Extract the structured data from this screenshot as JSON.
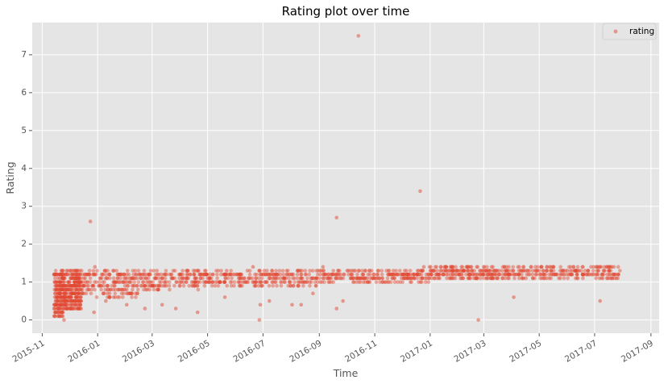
{
  "chart_data": {
    "type": "scatter",
    "title": "Rating plot over time",
    "xlabel": "Time",
    "ylabel": "Rating",
    "xlim": [
      "2015-10-21",
      "2017-09-10"
    ],
    "ylim": [
      -0.35,
      7.85
    ],
    "x_ticks": [
      "2015-11",
      "2016-01",
      "2016-03",
      "2016-05",
      "2016-07",
      "2016-09",
      "2016-11",
      "2017-01",
      "2017-03",
      "2017-05",
      "2017-07",
      "2017-09"
    ],
    "y_ticks": [
      0,
      1,
      2,
      3,
      4,
      5,
      6,
      7
    ],
    "grid": true,
    "legend_position": "top-right",
    "colors": {
      "series": "#E24A33",
      "plot_bg": "#E5E5E5",
      "grid": "#FFFFFF"
    },
    "series": [
      {
        "name": "rating",
        "points": [
          [
            "2015-12-24",
            2.6
          ],
          [
            "2016-06-27",
            0.0
          ],
          [
            "2016-09-20",
            2.7
          ],
          [
            "2016-09-20",
            0.3
          ],
          [
            "2016-09-27",
            0.5
          ],
          [
            "2016-10-14",
            7.5
          ],
          [
            "2016-12-21",
            3.4
          ],
          [
            "2017-02-23",
            0.0
          ],
          [
            "2017-04-03",
            0.6
          ],
          [
            "2017-07-07",
            0.5
          ],
          [
            "2015-11-20",
            0.1
          ],
          [
            "2015-11-25",
            0.0
          ],
          [
            "2015-12-05",
            0.3
          ],
          [
            "2015-12-28",
            0.2
          ],
          [
            "2016-01-10",
            0.5
          ],
          [
            "2016-02-02",
            0.4
          ],
          [
            "2016-02-22",
            0.3
          ],
          [
            "2016-03-12",
            0.4
          ],
          [
            "2016-03-27",
            0.3
          ],
          [
            "2016-04-20",
            0.2
          ],
          [
            "2016-05-20",
            0.6
          ],
          [
            "2016-06-28",
            0.4
          ],
          [
            "2016-07-08",
            0.5
          ],
          [
            "2016-08-02",
            0.4
          ],
          [
            "2016-08-12",
            0.4
          ],
          [
            "2016-08-25",
            0.7
          ],
          [
            "2015-12-29",
            1.4
          ],
          [
            "2016-01-18",
            1.3
          ],
          [
            "2016-05-22",
            1.3
          ],
          [
            "2016-06-20",
            1.4
          ],
          [
            "2016-09-05",
            1.4
          ],
          [
            "2016-12-25",
            1.4
          ],
          [
            "2017-05-03",
            1.4
          ],
          [
            "2017-07-20",
            1.4
          ]
        ],
        "dense_clusters": [
          {
            "from": "2015-11-14",
            "to": "2015-11-24",
            "y_min": 0.1,
            "y_max": 1.3,
            "count": 180
          },
          {
            "from": "2015-11-24",
            "to": "2015-12-14",
            "y_min": 0.3,
            "y_max": 1.3,
            "count": 300
          },
          {
            "from": "2015-12-14",
            "to": "2016-02-15",
            "y_min": 0.6,
            "y_max": 1.3,
            "count": 200
          },
          {
            "from": "2016-02-15",
            "to": "2016-05-01",
            "y_min": 0.8,
            "y_max": 1.3,
            "count": 190
          },
          {
            "from": "2016-05-01",
            "to": "2016-09-01",
            "y_min": 0.9,
            "y_max": 1.3,
            "count": 260
          },
          {
            "from": "2016-09-01",
            "to": "2016-12-31",
            "y_min": 1.0,
            "y_max": 1.3,
            "count": 240
          },
          {
            "from": "2016-12-31",
            "to": "2017-04-01",
            "y_min": 1.1,
            "y_max": 1.4,
            "count": 230
          },
          {
            "from": "2017-04-01",
            "to": "2017-07-29",
            "y_min": 1.1,
            "y_max": 1.4,
            "count": 220
          }
        ]
      }
    ]
  }
}
